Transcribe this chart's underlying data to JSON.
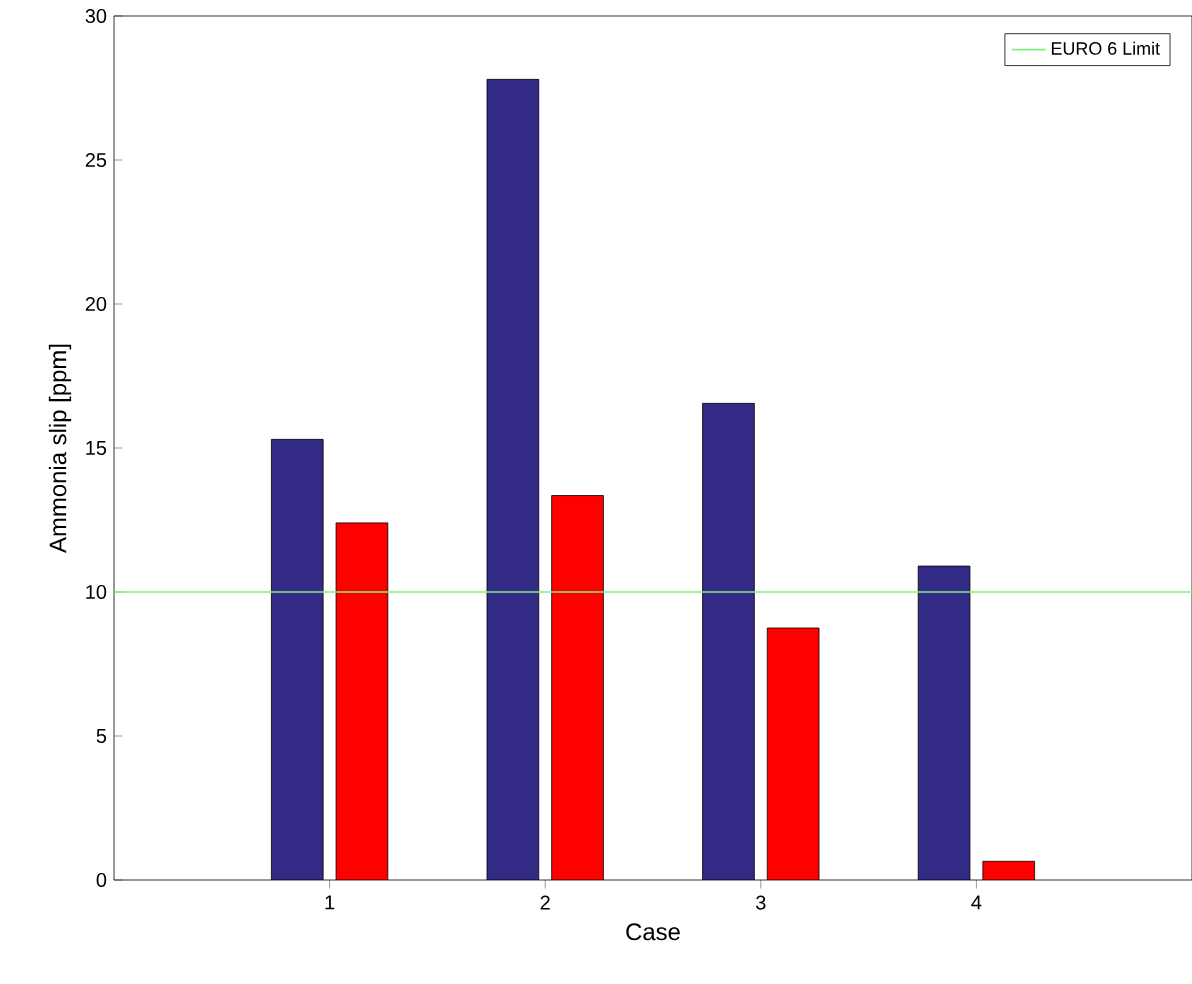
{
  "chart_data": {
    "type": "bar",
    "xlabel": "Case",
    "ylabel": "Ammonia slip [ppm]",
    "categories": [
      "1",
      "2",
      "3",
      "4"
    ],
    "series": [
      {
        "color": "#332a86",
        "values": [
          15.3,
          27.8,
          16.55,
          10.9
        ]
      },
      {
        "color": "#ff0000",
        "values": [
          12.4,
          13.35,
          8.75,
          0.65
        ]
      }
    ],
    "ylim": [
      0,
      30
    ],
    "yticks": [
      0,
      5,
      10,
      15,
      20,
      25,
      30
    ],
    "ref_lines": [
      {
        "axis": "y",
        "value": 10,
        "label": "EURO 6 Limit",
        "color": "#80f080",
        "line_style": "solid"
      }
    ],
    "legend": "top right",
    "grid": false
  }
}
